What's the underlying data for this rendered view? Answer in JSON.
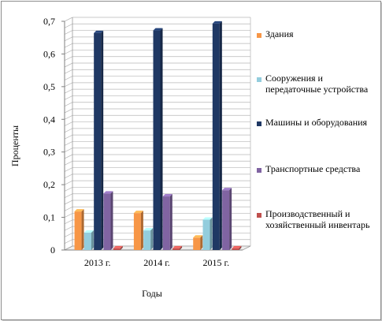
{
  "chart_data": {
    "type": "bar",
    "title": "",
    "xlabel": "Годы",
    "ylabel": "Проценты",
    "categories": [
      "2013 г.",
      "2014 г.",
      "2015 г."
    ],
    "y_ticks": [
      "0",
      "0,1",
      "0,2",
      "0,3",
      "0,4",
      "0,5",
      "0,6",
      "0,7"
    ],
    "ylim": [
      0,
      0.7
    ],
    "grid": true,
    "legend_position": "right",
    "series": [
      {
        "name": "Здания",
        "color": "#f79646",
        "values": [
          0.118,
          0.113,
          0.038
        ]
      },
      {
        "name": "Сооружения и передаточные устройства",
        "color": "#93cddd",
        "values": [
          0.053,
          0.06,
          0.093
        ]
      },
      {
        "name": "Машины и оборудования",
        "color": "#1f3864",
        "values": [
          0.664,
          0.672,
          0.693
        ]
      },
      {
        "name": "Транспортные средства",
        "color": "#8064a2",
        "values": [
          0.173,
          0.164,
          0.183
        ]
      },
      {
        "name": "Производственный и хозяйственный инвентарь",
        "color": "#c0504d",
        "values": [
          0.005,
          0.005,
          0.005
        ]
      }
    ]
  }
}
